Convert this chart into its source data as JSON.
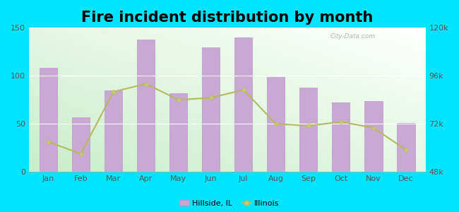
{
  "title": "Fire incident distribution by month",
  "months": [
    "Jan",
    "Feb",
    "Mar",
    "Apr",
    "May",
    "Jun",
    "Jul",
    "Aug",
    "Sep",
    "Oct",
    "Nov",
    "Dec"
  ],
  "hillside_values": [
    108,
    57,
    85,
    138,
    82,
    130,
    140,
    99,
    88,
    72,
    74,
    51
  ],
  "illinois_values": [
    63000,
    57000,
    88000,
    92000,
    84000,
    85000,
    89000,
    72000,
    71000,
    73000,
    70000,
    59000
  ],
  "bar_color": "#c9a8d4",
  "bar_edge_color": "#b898c8",
  "line_color": "#b8b860",
  "line_marker": "o",
  "line_marker_facecolor": "#c8c870",
  "line_marker_size": 4,
  "background_top_right": "#f5fff5",
  "background_bottom_left": "#c8eec8",
  "outer_background": "#00e5ff",
  "left_ylim": [
    0,
    150
  ],
  "left_yticks": [
    0,
    50,
    100,
    150
  ],
  "right_ylim": [
    48000,
    120000
  ],
  "right_yticks": [
    48000,
    72000,
    96000,
    120000
  ],
  "title_fontsize": 15,
  "tick_fontsize": 8,
  "watermark": "City-Data.com"
}
